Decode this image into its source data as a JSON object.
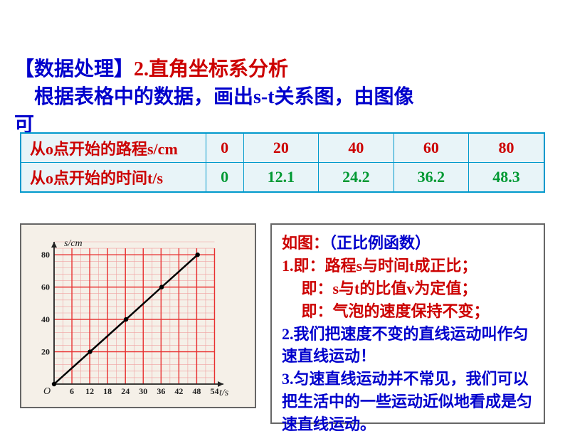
{
  "heading": {
    "prefix": "【数据处理】",
    "title": "2.直角坐标系分析",
    "line2_a": "　根据表格中的数据，画出s-t关系图，由图像",
    "line2_b": "可"
  },
  "table": {
    "row1_label": "从o点开始的路程s/cm",
    "row2_label": "从o点开始的时间t/s",
    "s_values": [
      "0",
      "20",
      "40",
      "60",
      "80"
    ],
    "t_values": [
      "0",
      "12.1",
      "24.2",
      "36.2",
      "48.3"
    ]
  },
  "chart": {
    "y_label": "s/cm",
    "x_label": "t/s",
    "origin_label": "O",
    "background": "#f5f0e8",
    "grid_major_color": "#e83030",
    "grid_minor_color": "#f0a0a0",
    "axis_color": "#222222",
    "line_color": "#000000",
    "point_color": "#000000",
    "x_range": [
      0,
      57
    ],
    "y_range": [
      0,
      88
    ],
    "x_ticks": [
      6,
      12,
      18,
      24,
      30,
      36,
      42,
      48,
      54
    ],
    "y_ticks": [
      20,
      40,
      60,
      80
    ],
    "y_minor_step": 4,
    "x_minor_cols": [
      3,
      6,
      9,
      12,
      15,
      18,
      21,
      24,
      27,
      30,
      33,
      36,
      39,
      42,
      45,
      48,
      51,
      54
    ],
    "data_points": [
      {
        "x": 0,
        "y": 0
      },
      {
        "x": 12.1,
        "y": 20
      },
      {
        "x": 24.2,
        "y": 40
      },
      {
        "x": 36.2,
        "y": 60
      },
      {
        "x": 48.3,
        "y": 80
      }
    ],
    "line_width": 2.5,
    "point_radius": 3.2,
    "tick_fontsize": 12,
    "label_fontsize": 14
  },
  "analysis": {
    "l1a": "如图：",
    "l1b": "（正比例函数）",
    "l2": "1.即：路程s与时间t成正比；",
    "l3": "　 即：s与t的比值v为定值；",
    "l4": "　 即：气泡的速度保持不变；",
    "l5": "2.我们把速度不变的直线运动叫作匀速直线运动！",
    "l6": "3.匀速直线运动并不常见，我们可以把生活中的一些运动近似地看成是匀速直线运动。"
  }
}
